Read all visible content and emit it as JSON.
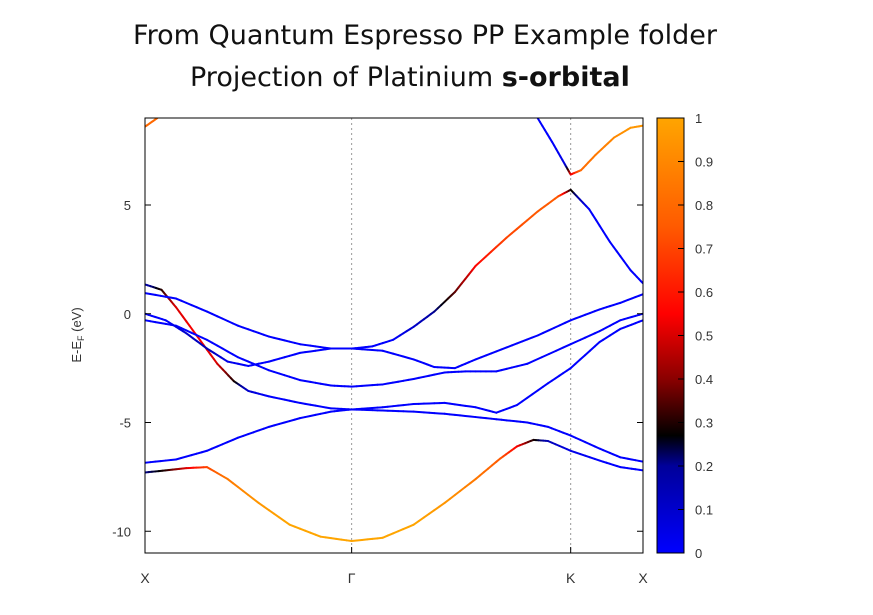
{
  "title": {
    "line1": "From Quantum Espresso PP Example folder",
    "line2_prefix": "Projection of Platinium ",
    "line2_bold": "s-orbital"
  },
  "chart_data": {
    "type": "line",
    "ylabel": "E-E",
    "ylabel_sub": "F",
    "ylabel_unit": " (eV)",
    "x_ticks": [
      {
        "label": "X",
        "x": 0
      },
      {
        "label": "Γ",
        "x": 1
      },
      {
        "label": "K",
        "x": 2.06
      },
      {
        "label": "X",
        "x": 2.41
      }
    ],
    "xlim": [
      0,
      2.41
    ],
    "ylim": [
      -11,
      9
    ],
    "y_ticks": [
      -10,
      -5,
      0,
      5
    ],
    "colorbar": {
      "range": [
        0,
        1
      ],
      "ticks": [
        "0",
        "0.1",
        "0.2",
        "0.3",
        "0.4",
        "0.5",
        "0.6",
        "0.7",
        "0.8",
        "0.9",
        "1"
      ],
      "stops": [
        {
          "v": 0,
          "color": "#0000ff"
        },
        {
          "v": 0.2,
          "color": "#00009a"
        },
        {
          "v": 0.27,
          "color": "#000000"
        },
        {
          "v": 0.4,
          "color": "#8a0000"
        },
        {
          "v": 0.55,
          "color": "#ff0000"
        },
        {
          "v": 0.75,
          "color": "#ff5a00"
        },
        {
          "v": 1,
          "color": "#ffa500"
        }
      ]
    },
    "grid_vertical_at_high_symmetry": true,
    "bands": [
      {
        "name": "band1",
        "points": [
          [
            0,
            -7.3,
            0.2
          ],
          [
            0.1,
            -7.2,
            0.3
          ],
          [
            0.2,
            -7.1,
            0.5
          ],
          [
            0.3,
            -7.05,
            0.7
          ],
          [
            0.4,
            -7.6,
            0.85
          ],
          [
            0.55,
            -8.7,
            0.95
          ],
          [
            0.7,
            -9.7,
            1
          ],
          [
            0.85,
            -10.25,
            1
          ],
          [
            1,
            -10.45,
            1
          ],
          [
            1.15,
            -10.3,
            1
          ],
          [
            1.3,
            -9.7,
            1
          ],
          [
            1.45,
            -8.7,
            0.95
          ],
          [
            1.6,
            -7.6,
            0.85
          ],
          [
            1.72,
            -6.65,
            0.75
          ],
          [
            1.8,
            -6.1,
            0.55
          ],
          [
            1.88,
            -5.8,
            0.3
          ],
          [
            1.95,
            -5.85,
            0.15
          ],
          [
            2.06,
            -6.3,
            0.05
          ],
          [
            2.2,
            -6.75,
            0
          ],
          [
            2.3,
            -7.05,
            0
          ],
          [
            2.41,
            -7.2,
            0
          ]
        ]
      },
      {
        "name": "band2",
        "points": [
          [
            0,
            -6.85,
            0
          ],
          [
            0.15,
            -6.7,
            0
          ],
          [
            0.3,
            -6.3,
            0
          ],
          [
            0.45,
            -5.7,
            0
          ],
          [
            0.6,
            -5.2,
            0
          ],
          [
            0.75,
            -4.8,
            0
          ],
          [
            0.9,
            -4.5,
            0
          ],
          [
            1,
            -4.4,
            0
          ],
          [
            1.15,
            -4.45,
            0
          ],
          [
            1.3,
            -4.5,
            0
          ],
          [
            1.45,
            -4.6,
            0
          ],
          [
            1.6,
            -4.75,
            0
          ],
          [
            1.75,
            -4.9,
            0
          ],
          [
            1.85,
            -5.0,
            0
          ],
          [
            1.95,
            -5.2,
            0
          ],
          [
            2.06,
            -5.6,
            0
          ],
          [
            2.2,
            -6.2,
            0
          ],
          [
            2.3,
            -6.6,
            0
          ],
          [
            2.41,
            -6.8,
            0
          ]
        ]
      },
      {
        "name": "band3",
        "points": [
          [
            0,
            1.35,
            0.15
          ],
          [
            0.08,
            1.1,
            0.3
          ],
          [
            0.15,
            0.3,
            0.5
          ],
          [
            0.25,
            -1.0,
            0.55
          ],
          [
            0.35,
            -2.3,
            0.5
          ],
          [
            0.43,
            -3.1,
            0.3
          ],
          [
            0.5,
            -3.55,
            0.1
          ],
          [
            0.6,
            -3.8,
            0
          ],
          [
            0.75,
            -4.1,
            0
          ],
          [
            0.9,
            -4.35,
            0
          ],
          [
            1,
            -4.4,
            0
          ],
          [
            1.15,
            -4.3,
            0
          ],
          [
            1.3,
            -4.15,
            0
          ],
          [
            1.45,
            -4.1,
            0
          ],
          [
            1.6,
            -4.3,
            0
          ],
          [
            1.7,
            -4.55,
            0
          ],
          [
            1.8,
            -4.2,
            0
          ],
          [
            1.95,
            -3.2,
            0
          ],
          [
            2.06,
            -2.5,
            0
          ],
          [
            2.2,
            -1.3,
            0
          ],
          [
            2.3,
            -0.7,
            0
          ],
          [
            2.41,
            -0.3,
            0
          ]
        ]
      },
      {
        "name": "band4",
        "points": [
          [
            0,
            -0.3,
            0
          ],
          [
            0.15,
            -0.55,
            0
          ],
          [
            0.3,
            -1.2,
            0
          ],
          [
            0.45,
            -2.0,
            0
          ],
          [
            0.6,
            -2.6,
            0
          ],
          [
            0.75,
            -3.05,
            0
          ],
          [
            0.9,
            -3.3,
            0
          ],
          [
            1,
            -3.35,
            0
          ],
          [
            1.15,
            -3.25,
            0
          ],
          [
            1.3,
            -3.0,
            0
          ],
          [
            1.45,
            -2.7,
            0
          ],
          [
            1.55,
            -2.65,
            0
          ],
          [
            1.7,
            -2.65,
            0
          ],
          [
            1.85,
            -2.3,
            0
          ],
          [
            2.06,
            -1.4,
            0
          ],
          [
            2.2,
            -0.8,
            0
          ],
          [
            2.3,
            -0.3,
            0
          ],
          [
            2.41,
            0.0,
            0
          ]
        ]
      },
      {
        "name": "band5",
        "points": [
          [
            0,
            0.0,
            0
          ],
          [
            0.1,
            -0.3,
            0
          ],
          [
            0.2,
            -0.9,
            0.1
          ],
          [
            0.3,
            -1.6,
            0.15
          ],
          [
            0.4,
            -2.2,
            0.05
          ],
          [
            0.5,
            -2.4,
            0
          ],
          [
            0.6,
            -2.2,
            0
          ],
          [
            0.75,
            -1.8,
            0
          ],
          [
            0.9,
            -1.6,
            0
          ],
          [
            1,
            -1.6,
            0
          ],
          [
            1.15,
            -1.7,
            0
          ],
          [
            1.3,
            -2.1,
            0
          ],
          [
            1.4,
            -2.45,
            0
          ],
          [
            1.5,
            -2.5,
            0
          ],
          [
            1.6,
            -2.1,
            0
          ],
          [
            1.75,
            -1.55,
            0
          ],
          [
            1.9,
            -1.0,
            0
          ],
          [
            2.06,
            -0.3,
            0
          ],
          [
            2.2,
            0.2,
            0
          ],
          [
            2.3,
            0.5,
            0
          ],
          [
            2.41,
            0.9,
            0
          ]
        ]
      },
      {
        "name": "band6",
        "points": [
          [
            0,
            0.95,
            0
          ],
          [
            0.15,
            0.7,
            0
          ],
          [
            0.3,
            0.1,
            0
          ],
          [
            0.45,
            -0.55,
            0
          ],
          [
            0.6,
            -1.05,
            0
          ],
          [
            0.75,
            -1.4,
            0
          ],
          [
            0.9,
            -1.6,
            0
          ],
          [
            1,
            -1.6,
            0
          ],
          [
            1.1,
            -1.5,
            0
          ],
          [
            1.2,
            -1.2,
            0
          ],
          [
            1.3,
            -0.6,
            0.1
          ],
          [
            1.4,
            0.1,
            0.2
          ],
          [
            1.5,
            1.0,
            0.35
          ],
          [
            1.6,
            2.2,
            0.55
          ],
          [
            1.75,
            3.5,
            0.7
          ],
          [
            1.9,
            4.7,
            0.75
          ],
          [
            2.0,
            5.4,
            0.75
          ],
          [
            2.06,
            5.7,
            0.3
          ],
          [
            2.15,
            4.8,
            0
          ],
          [
            2.25,
            3.3,
            0
          ],
          [
            2.35,
            2.0,
            0
          ],
          [
            2.41,
            1.4,
            0
          ]
        ]
      },
      {
        "name": "band7",
        "points": [
          [
            1.9,
            9.0,
            0
          ],
          [
            1.97,
            7.9,
            0
          ],
          [
            2.03,
            6.9,
            0.05
          ],
          [
            2.06,
            6.4,
            0.5
          ],
          [
            2.11,
            6.6,
            0.8
          ],
          [
            2.18,
            7.3,
            0.85
          ],
          [
            2.27,
            8.1,
            0.9
          ],
          [
            2.35,
            8.55,
            0.95
          ],
          [
            2.41,
            8.65,
            0.95
          ]
        ]
      },
      {
        "name": "band8",
        "points": [
          [
            0,
            8.6,
            0.8
          ],
          [
            0.03,
            8.8,
            0.8
          ],
          [
            0.06,
            9.0,
            0.8
          ]
        ]
      }
    ]
  }
}
